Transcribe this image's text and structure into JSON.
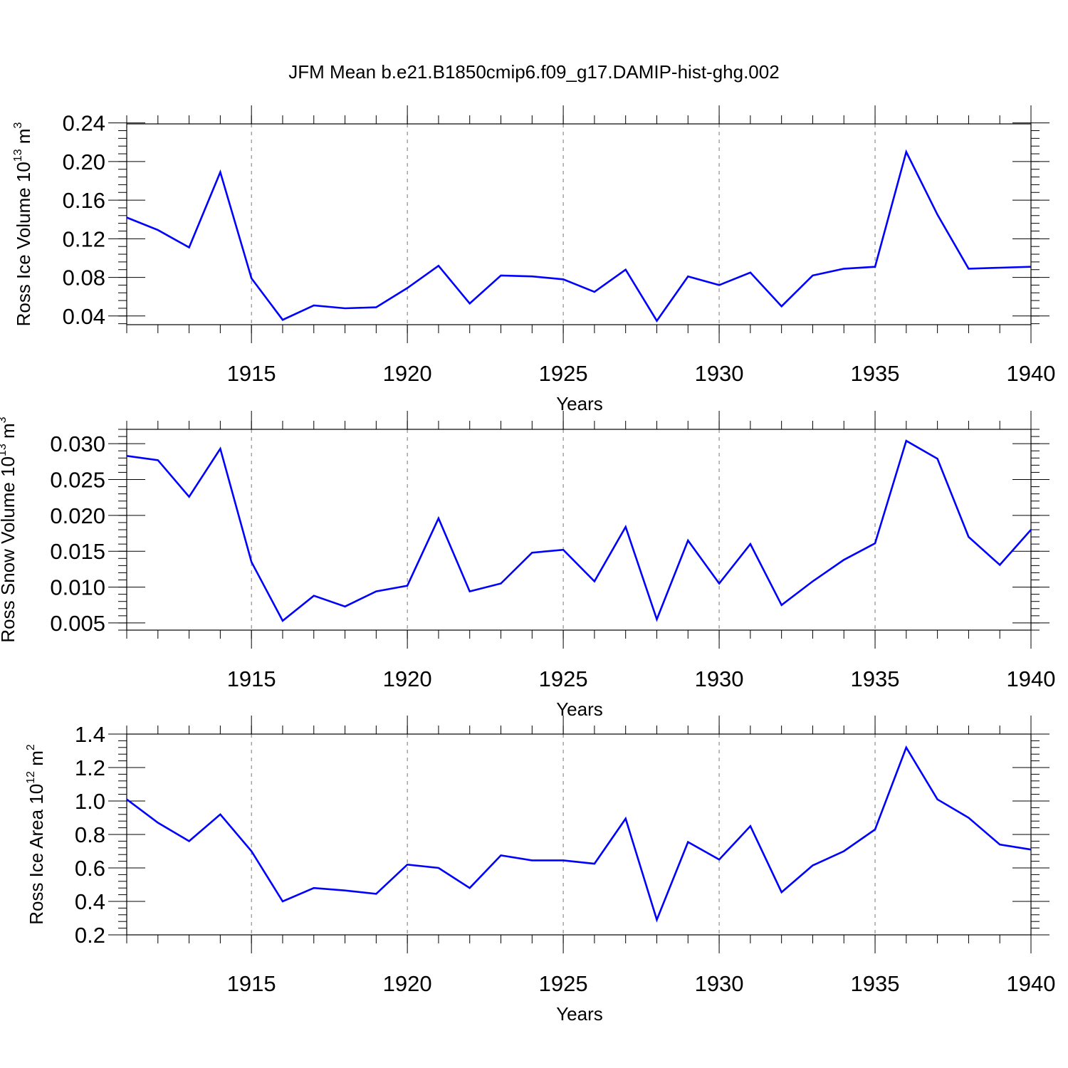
{
  "figure": {
    "title": "JFM Mean b.e21.B1850cmip6.f09_g17.DAMIP-hist-ghg.002",
    "line_color": "#0000ff",
    "grid_style": "dashed vertical lines at major x ticks"
  },
  "chart_data": [
    {
      "type": "line",
      "ylabel": "Ross Ice Volume 10",
      "ylabel_exp": "13",
      "ylabel_unit": " m",
      "ylabel_unit_exp": "3",
      "xlabel": "Years",
      "xlim": [
        1911,
        1940
      ],
      "ylim": [
        0.031,
        0.239
      ],
      "xticks": [
        1915,
        1920,
        1925,
        1930,
        1935,
        1940
      ],
      "xtick_labels": [
        "1915",
        "1920",
        "1925",
        "1930",
        "1935",
        "1940"
      ],
      "yticks": [
        0.04,
        0.08,
        0.12,
        0.16,
        0.2,
        0.24
      ],
      "ytick_labels": [
        "0.04",
        "0.08",
        "0.12",
        "0.16",
        "0.20",
        "0.24"
      ],
      "grid": true,
      "x": [
        1911,
        1912,
        1913,
        1914,
        1915,
        1916,
        1917,
        1918,
        1919,
        1920,
        1921,
        1922,
        1923,
        1924,
        1925,
        1926,
        1927,
        1928,
        1929,
        1930,
        1931,
        1932,
        1933,
        1934,
        1935,
        1936,
        1937,
        1938,
        1939,
        1940
      ],
      "values": [
        0.142,
        0.129,
        0.111,
        0.189,
        0.079,
        0.036,
        0.051,
        0.048,
        0.049,
        0.069,
        0.092,
        0.053,
        0.082,
        0.081,
        0.078,
        0.065,
        0.088,
        0.035,
        0.081,
        0.072,
        0.085,
        0.05,
        0.082,
        0.089,
        0.091,
        0.21,
        0.145,
        0.089,
        0.09,
        0.091
      ]
    },
    {
      "type": "line",
      "ylabel": "Ross Snow Volume 10",
      "ylabel_exp": "13",
      "ylabel_unit": " m",
      "ylabel_unit_exp": "3",
      "xlabel": "Years",
      "xlim": [
        1911,
        1940
      ],
      "ylim": [
        0.004,
        0.032
      ],
      "xticks": [
        1915,
        1920,
        1925,
        1930,
        1935,
        1940
      ],
      "xtick_labels": [
        "1915",
        "1920",
        "1925",
        "1930",
        "1935",
        "1940"
      ],
      "yticks": [
        0.005,
        0.01,
        0.015,
        0.02,
        0.025,
        0.03
      ],
      "ytick_labels": [
        "0.005",
        "0.010",
        "0.015",
        "0.020",
        "0.025",
        "0.030"
      ],
      "grid": true,
      "x": [
        1911,
        1912,
        1913,
        1914,
        1915,
        1916,
        1917,
        1918,
        1919,
        1920,
        1921,
        1922,
        1923,
        1924,
        1925,
        1926,
        1927,
        1928,
        1929,
        1930,
        1931,
        1932,
        1933,
        1934,
        1935,
        1936,
        1937,
        1938,
        1939,
        1940
      ],
      "values": [
        0.0283,
        0.0277,
        0.0226,
        0.0293,
        0.0135,
        0.0053,
        0.0088,
        0.0073,
        0.0094,
        0.0102,
        0.0196,
        0.0094,
        0.0105,
        0.0148,
        0.0152,
        0.0108,
        0.0184,
        0.0055,
        0.0165,
        0.0105,
        0.016,
        0.0075,
        0.0108,
        0.0138,
        0.0161,
        0.0304,
        0.0279,
        0.017,
        0.0131,
        0.018
      ]
    },
    {
      "type": "line",
      "ylabel": "Ross Ice Area 10",
      "ylabel_exp": "12",
      "ylabel_unit": " m",
      "ylabel_unit_exp": "2",
      "xlabel": "Years",
      "xlim": [
        1911,
        1940
      ],
      "ylim": [
        0.2,
        1.4
      ],
      "xticks": [
        1915,
        1920,
        1925,
        1930,
        1935,
        1940
      ],
      "xtick_labels": [
        "1915",
        "1920",
        "1925",
        "1930",
        "1935",
        "1940"
      ],
      "yticks": [
        0.2,
        0.4,
        0.6,
        0.8,
        1.0,
        1.2,
        1.4
      ],
      "ytick_labels": [
        "0.2",
        "0.4",
        "0.6",
        "0.8",
        "1.0",
        "1.2",
        "1.4"
      ],
      "grid": true,
      "x": [
        1911,
        1912,
        1913,
        1914,
        1915,
        1916,
        1917,
        1918,
        1919,
        1920,
        1921,
        1922,
        1923,
        1924,
        1925,
        1926,
        1927,
        1928,
        1929,
        1930,
        1931,
        1932,
        1933,
        1934,
        1935,
        1936,
        1937,
        1938,
        1939,
        1940
      ],
      "values": [
        1.01,
        0.87,
        0.76,
        0.92,
        0.7,
        0.4,
        0.48,
        0.465,
        0.445,
        0.62,
        0.6,
        0.48,
        0.675,
        0.645,
        0.645,
        0.625,
        0.895,
        0.29,
        0.755,
        0.65,
        0.85,
        0.455,
        0.615,
        0.7,
        0.83,
        1.32,
        1.01,
        0.9,
        0.74,
        0.71
      ]
    }
  ]
}
